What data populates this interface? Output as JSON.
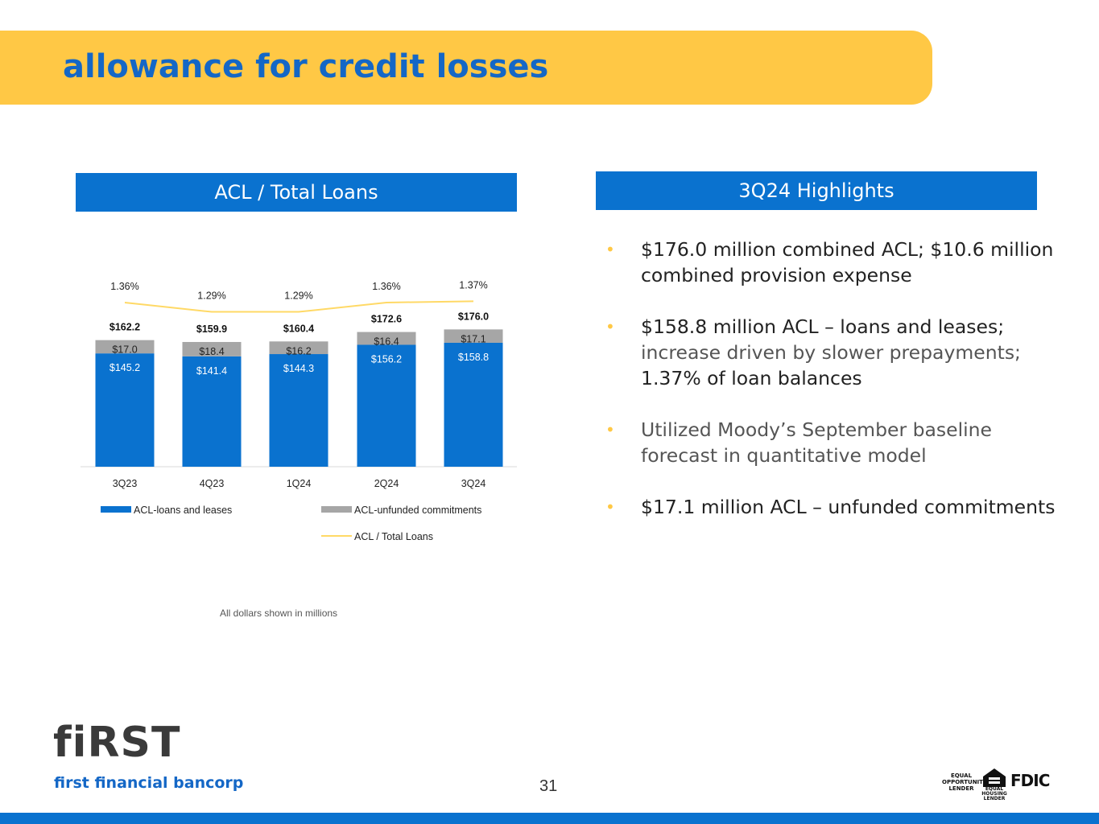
{
  "slide": {
    "title": "allowance for credit losses",
    "page_number": "31",
    "note": "All dollars shown in millions"
  },
  "left_panel": {
    "header": "ACL / Total Loans"
  },
  "right_panel": {
    "header": "3Q24 Highlights",
    "bullets": [
      {
        "strong": "$176.0 million combined ACL; $10.6 million combined provision expense",
        "rest": ""
      },
      {
        "strong": "$158.8 million ACL – loans and leases;",
        "rest": " increase driven by slower prepayments;",
        "tail": " 1.37% of loan balances"
      },
      {
        "strong": "Utilized Moody’s September baseline forecast in quantitative model",
        "rest": ""
      },
      {
        "strong": "$17.1 million ACL – unfunded commitments",
        "rest": ""
      }
    ]
  },
  "logo": {
    "word": "fiRST",
    "sub": "first financial bancorp"
  },
  "footer_badges": {
    "equal_opportunity": "EQUAL OPPORTUNITY LENDER",
    "equal_housing": "EQUAL HOUSING LENDER",
    "fdic": "FDIC"
  },
  "colors": {
    "blue": "#0A72CF",
    "gray": "#A6A6A6",
    "yellow": "#FFC845",
    "line": "#FFD966",
    "title_blue": "#1467C6"
  },
  "chart_data": {
    "type": "bar",
    "stacked": true,
    "categories": [
      "3Q23",
      "4Q23",
      "1Q24",
      "2Q24",
      "3Q24"
    ],
    "series": [
      {
        "name": "ACL-loans and leases",
        "values": [
          145.2,
          141.4,
          144.3,
          156.2,
          158.8
        ],
        "labels": [
          "$145.2",
          "$141.4",
          "$144.3",
          "$156.2",
          "$158.8"
        ],
        "color": "#0A72CF"
      },
      {
        "name": "ACL-unfunded commitments",
        "values": [
          17.0,
          18.4,
          16.2,
          16.4,
          17.1
        ],
        "labels": [
          "$17.0",
          "$18.4",
          "$16.2",
          "$16.4",
          "$17.1"
        ],
        "color": "#A6A6A6"
      }
    ],
    "totals": [
      162.2,
      159.9,
      160.4,
      172.6,
      176.0
    ],
    "total_labels": [
      "$162.2",
      "$159.9",
      "$160.4",
      "$172.6",
      "$176.0"
    ],
    "line": {
      "name": "ACL / Total Loans",
      "values": [
        1.36,
        1.29,
        1.29,
        1.36,
        1.37
      ],
      "labels": [
        "1.36%",
        "1.29%",
        "1.29%",
        "1.36%",
        "1.37%"
      ],
      "color": "#FFD966"
    },
    "legend_position": "bottom",
    "grid": false
  }
}
